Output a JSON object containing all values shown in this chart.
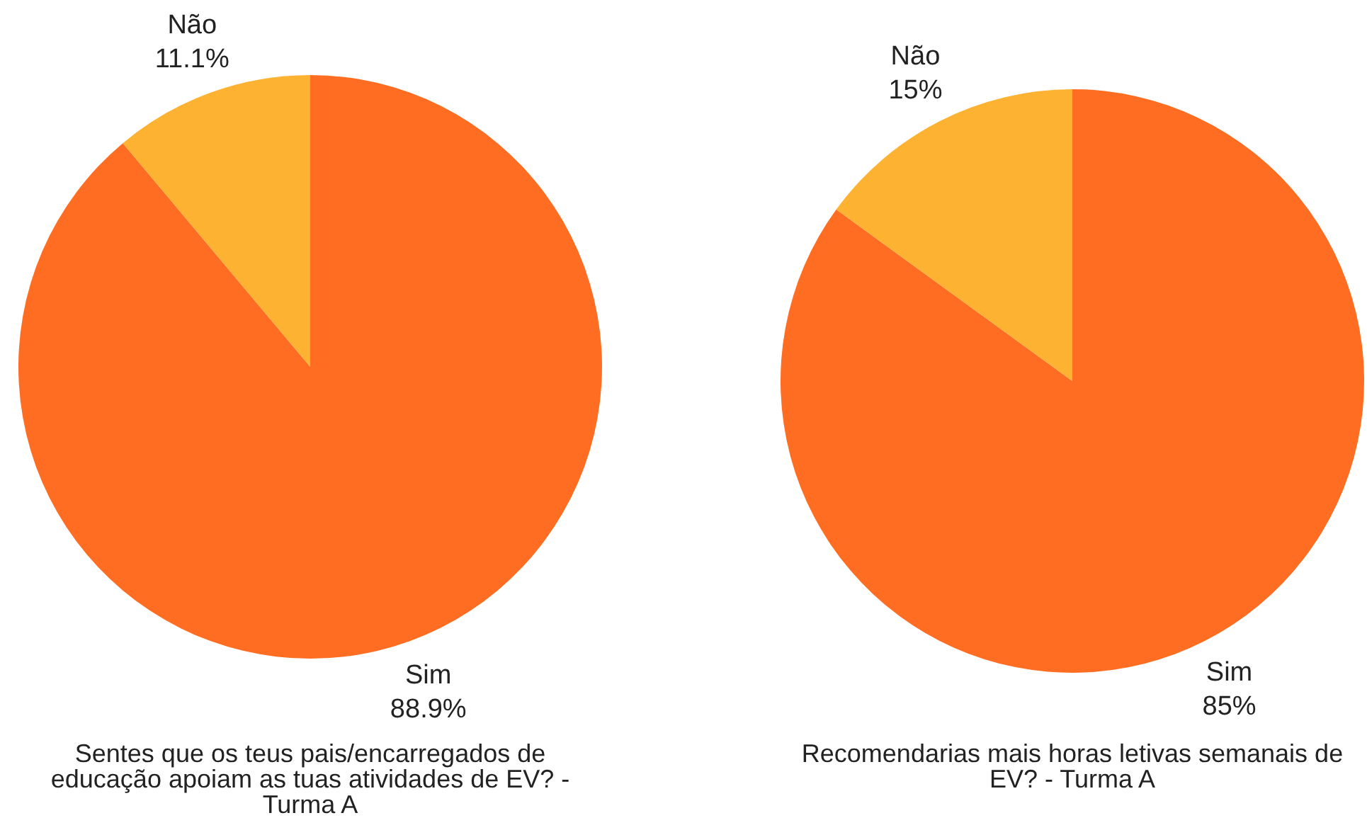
{
  "chart_data": [
    {
      "type": "pie",
      "title": "Sentes que os teus pais/encarregados de educação apoiam as tuas atividades de EV? - Turma A",
      "categories": [
        "Sim",
        "Não"
      ],
      "values": [
        88.9,
        11.1
      ],
      "colors": [
        "#ff6d22",
        "#fdb232"
      ],
      "value_labels": [
        "88.9%",
        "11.1%"
      ]
    },
    {
      "type": "pie",
      "title": "Recomendarias mais horas letivas semanais de EV? - Turma A",
      "categories": [
        "Sim",
        "Não"
      ],
      "values": [
        85,
        15
      ],
      "colors": [
        "#ff6d22",
        "#fdb232"
      ],
      "value_labels": [
        "85%",
        "15%"
      ]
    }
  ]
}
